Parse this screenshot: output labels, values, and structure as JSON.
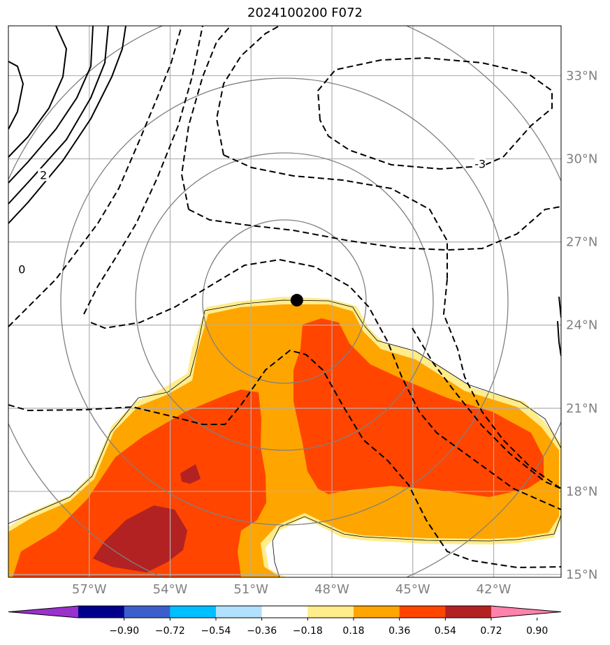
{
  "chart_data": {
    "type": "contour-map",
    "title": "2024100200 F072",
    "map": {
      "lon_range": [
        -60,
        -39.5
      ],
      "lat_range": [
        14.9,
        34.8
      ],
      "lon_ticks": [
        -57,
        -54,
        -51,
        -48,
        -45,
        -42
      ],
      "lon_tick_labels": [
        "57°W",
        "54°W",
        "51°W",
        "48°W",
        "45°W",
        "42°W"
      ],
      "lat_ticks": [
        15,
        18,
        21,
        24,
        27,
        30,
        33
      ],
      "lat_tick_labels": [
        "15°N",
        "18°N",
        "21°N",
        "24°N",
        "27°N",
        "30°N",
        "33°N"
      ],
      "grid": true,
      "center_marker": {
        "lon": -49.3,
        "lat": 24.9
      },
      "range_rings_count": 4
    },
    "filled_field": {
      "levels": [
        -0.9,
        -0.72,
        -0.54,
        -0.36,
        -0.18,
        0.18,
        0.36,
        0.54,
        0.72,
        0.9
      ],
      "colors": [
        "#9932cc",
        "#00008b",
        "#3a5fcd",
        "#00bfff",
        "#b0e2ff",
        "#ffffff",
        "#ffec8b",
        "#ffa500",
        "#ff4500",
        "#b22222",
        "#ff82ab"
      ],
      "extend": "both"
    },
    "contour_labels": [
      {
        "text": "2",
        "lon": -58.7,
        "lat": 29.4
      },
      {
        "text": "0",
        "lon": -59.5,
        "lat": 26.0
      },
      {
        "text": "-3",
        "lon": -42.5,
        "lat": 29.8
      }
    ],
    "colorbar": {
      "tick_values": [
        -0.9,
        -0.72,
        -0.54,
        -0.36,
        -0.18,
        0.18,
        0.36,
        0.54,
        0.72,
        0.9
      ],
      "tick_labels": [
        "−0.90",
        "−0.72",
        "−0.54",
        "−0.36",
        "−0.18",
        "0.18",
        "0.36",
        "0.54",
        "0.72",
        "0.90"
      ]
    }
  }
}
